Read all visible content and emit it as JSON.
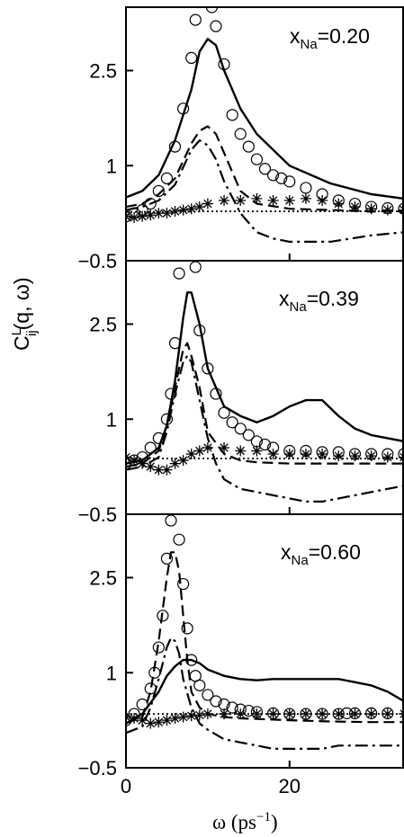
{
  "chart_data": {
    "type": "line",
    "ylabel_main": "C",
    "ylabel_sup": "L",
    "ylabel_sub": "ij",
    "ylabel_rest": "(q, ω)",
    "xlabel_main": "ω (ps",
    "xlabel_sup": "−1",
    "xlabel_close": ")",
    "xlim": [
      0,
      34
    ],
    "ylim": [
      -0.5,
      3.5
    ],
    "x_ticks": [
      0,
      20
    ],
    "x_tick_labels": [
      "0",
      "20"
    ],
    "y_ticks": [
      -0.5,
      1,
      2.5
    ],
    "y_tick_labels": [
      "−0.5",
      "1",
      "2.5"
    ],
    "panels": [
      {
        "label_main": "x",
        "label_sub": "Na",
        "label_val": "=0.20",
        "series": [
          {
            "style": "solid",
            "x": [
              0,
              2,
              4,
              6,
              8,
              9,
              10,
              11,
              12,
              14,
              16,
              20,
              25,
              30,
              34
            ],
            "y": [
              0.5,
              0.6,
              0.85,
              1.4,
              2.2,
              2.8,
              3.0,
              2.9,
              2.5,
              1.9,
              1.5,
              1.0,
              0.72,
              0.55,
              0.48
            ]
          },
          {
            "style": "dashed",
            "x": [
              0,
              2,
              4,
              6,
              8,
              9,
              10,
              11,
              12,
              14,
              16,
              20,
              25,
              30,
              34
            ],
            "y": [
              0.35,
              0.4,
              0.55,
              0.8,
              1.35,
              1.55,
              1.62,
              1.5,
              1.2,
              0.6,
              0.4,
              0.32,
              0.3,
              0.28,
              0.28
            ]
          },
          {
            "style": "dashdot",
            "x": [
              0,
              2,
              4,
              6,
              8,
              9,
              10,
              11,
              12,
              14,
              16,
              18,
              20,
              25,
              30,
              34
            ],
            "y": [
              0.3,
              0.35,
              0.45,
              0.7,
              1.25,
              1.4,
              1.32,
              1.1,
              0.75,
              0.25,
              -0.05,
              -0.15,
              -0.2,
              -0.2,
              -0.1,
              -0.05
            ]
          },
          {
            "style": "dotted",
            "x": [
              0,
              5,
              10,
              15,
              20,
              25,
              30,
              34
            ],
            "y": [
              0.27,
              0.27,
              0.28,
              0.28,
              0.28,
              0.28,
              0.28,
              0.28
            ]
          },
          {
            "style": "circle",
            "x": [
              0,
              1,
              2,
              3,
              4,
              5,
              6,
              7,
              8,
              8.5,
              9,
              9.5,
              10,
              10.5,
              11,
              12,
              13,
              14,
              15,
              16,
              17,
              18,
              19,
              20,
              22,
              24,
              26,
              28,
              30,
              32,
              34
            ],
            "y": [
              0.2,
              0.25,
              0.3,
              0.4,
              0.6,
              0.8,
              1.3,
              1.9,
              2.7,
              3.3,
              3.6,
              3.7,
              3.7,
              3.5,
              3.2,
              2.6,
              1.8,
              1.5,
              1.3,
              1.1,
              0.95,
              0.85,
              0.8,
              0.75,
              0.65,
              0.55,
              0.45,
              0.4,
              0.35,
              0.33,
              0.32
            ]
          },
          {
            "style": "star",
            "x": [
              0,
              1,
              2,
              3,
              4,
              5,
              6,
              7,
              8,
              9,
              10,
              12,
              14,
              16,
              18,
              20,
              22,
              24,
              26,
              28,
              30,
              32,
              34
            ],
            "y": [
              0.2,
              0.18,
              0.2,
              0.22,
              0.25,
              0.25,
              0.28,
              0.3,
              0.32,
              0.35,
              0.4,
              0.45,
              0.45,
              0.48,
              0.45,
              0.45,
              0.48,
              0.45,
              0.4,
              0.35,
              0.32,
              0.3,
              0.3
            ]
          }
        ]
      },
      {
        "label_main": "x",
        "label_sub": "Na",
        "label_val": "=0.39",
        "series": [
          {
            "style": "solid",
            "x": [
              0,
              2,
              4,
              5,
              6,
              7,
              7.5,
              8,
              9,
              10,
              12,
              14,
              16,
              18,
              20,
              22,
              24,
              26,
              28,
              30,
              32,
              34
            ],
            "y": [
              0.3,
              0.35,
              0.55,
              0.9,
              1.6,
              2.6,
              3.0,
              3.0,
              2.5,
              1.8,
              1.2,
              1.05,
              0.95,
              1.05,
              1.2,
              1.3,
              1.3,
              1.05,
              0.85,
              0.75,
              0.7,
              0.65
            ]
          },
          {
            "style": "dashed",
            "x": [
              0,
              2,
              4,
              5,
              6,
              7,
              7.5,
              8,
              9,
              10,
              12,
              14,
              16,
              20,
              25,
              30,
              34
            ],
            "y": [
              0.25,
              0.3,
              0.5,
              0.9,
              1.5,
              2.1,
              2.2,
              2.0,
              1.5,
              0.8,
              0.45,
              0.35,
              0.32,
              0.3,
              0.3,
              0.3,
              0.3
            ]
          },
          {
            "style": "dashdot",
            "x": [
              0,
              2,
              4,
              5,
              6,
              7,
              7.5,
              8,
              9,
              10,
              11,
              12,
              14,
              16,
              18,
              20,
              22,
              24,
              26,
              28,
              30,
              32,
              34
            ],
            "y": [
              0.2,
              0.25,
              0.4,
              0.8,
              1.4,
              1.9,
              2.0,
              1.9,
              1.3,
              0.7,
              0.3,
              0.05,
              -0.1,
              -0.15,
              -0.2,
              -0.25,
              -0.3,
              -0.3,
              -0.25,
              -0.2,
              -0.15,
              -0.1,
              -0.05
            ]
          },
          {
            "style": "dotted",
            "x": [
              0,
              5,
              10,
              15,
              20,
              25,
              30,
              34
            ],
            "y": [
              0.38,
              0.38,
              0.38,
              0.38,
              0.38,
              0.38,
              0.38,
              0.38
            ]
          },
          {
            "style": "circle",
            "x": [
              0,
              1,
              2,
              3,
              4,
              5,
              5.5,
              6,
              6.5,
              7,
              7.5,
              8,
              8.5,
              9,
              10,
              11,
              12,
              13,
              14,
              15,
              16,
              17,
              18,
              20,
              22,
              24,
              26,
              28,
              30,
              32,
              34
            ],
            "y": [
              0.3,
              0.35,
              0.4,
              0.55,
              0.7,
              1.0,
              1.4,
              2.2,
              3.3,
              3.9,
              4.2,
              4.2,
              3.4,
              2.4,
              1.8,
              1.4,
              1.1,
              0.95,
              0.85,
              0.75,
              0.65,
              0.6,
              0.55,
              0.5,
              0.5,
              0.48,
              0.48,
              0.45,
              0.45,
              0.45,
              0.45
            ]
          },
          {
            "style": "star",
            "x": [
              0,
              1,
              2,
              3,
              4,
              5,
              6,
              7,
              8,
              9,
              10,
              12,
              14,
              16,
              18,
              20,
              22,
              24,
              26,
              28,
              30,
              32,
              34
            ],
            "y": [
              0.4,
              0.35,
              0.3,
              0.25,
              0.2,
              0.2,
              0.3,
              0.35,
              0.45,
              0.5,
              0.55,
              0.55,
              0.5,
              0.5,
              0.45,
              0.45,
              0.45,
              0.45,
              0.42,
              0.42,
              0.42,
              0.4,
              0.4
            ]
          }
        ]
      },
      {
        "label_main": "x",
        "label_sub": "Na",
        "label_val": "=0.60",
        "series": [
          {
            "style": "solid",
            "x": [
              0,
              2,
              4,
              5,
              6,
              7,
              8,
              9,
              10,
              12,
              14,
              16,
              18,
              20,
              22,
              24,
              26,
              28,
              30,
              32,
              34
            ],
            "y": [
              0.2,
              0.35,
              0.7,
              0.95,
              1.1,
              1.2,
              1.2,
              1.15,
              1.05,
              0.95,
              0.9,
              0.88,
              0.9,
              0.9,
              0.9,
              0.9,
              0.9,
              0.85,
              0.8,
              0.7,
              0.55
            ]
          },
          {
            "style": "dashed",
            "x": [
              0,
              2,
              3,
              4,
              5,
              5.5,
              6,
              6.5,
              7,
              7.5,
              8,
              9,
              10,
              12,
              14,
              16,
              20,
              25,
              30,
              34
            ],
            "y": [
              0.2,
              0.3,
              0.7,
              1.5,
              2.5,
              2.9,
              2.9,
              2.6,
              1.9,
              1.2,
              0.7,
              0.45,
              0.35,
              0.3,
              0.28,
              0.27,
              0.25,
              0.23,
              0.22,
              0.22
            ]
          },
          {
            "style": "dashdot",
            "x": [
              0,
              2,
              3,
              4,
              5,
              5.5,
              6,
              6.5,
              7,
              8,
              9,
              10,
              12,
              14,
              16,
              18,
              20,
              22,
              24,
              26,
              28,
              30,
              32,
              34
            ],
            "y": [
              0.05,
              0.15,
              0.45,
              0.9,
              1.4,
              1.55,
              1.5,
              1.3,
              0.9,
              0.45,
              0.2,
              0.1,
              -0.05,
              -0.1,
              -0.15,
              -0.2,
              -0.2,
              -0.2,
              -0.2,
              -0.15,
              -0.15,
              -0.15,
              -0.15,
              -0.15
            ]
          },
          {
            "style": "dotted",
            "x": [
              0,
              5,
              10,
              15,
              20,
              25,
              30,
              34
            ],
            "y": [
              0.35,
              0.35,
              0.35,
              0.35,
              0.35,
              0.35,
              0.35,
              0.35
            ]
          },
          {
            "style": "circle",
            "x": [
              0,
              1,
              2,
              3,
              3.5,
              4,
              4.5,
              5,
              5.5,
              6,
              6.5,
              7,
              7.5,
              8,
              8.5,
              9,
              10,
              11,
              12,
              13,
              14,
              15,
              16,
              18,
              20,
              22,
              24,
              26,
              27,
              28,
              30,
              32
            ],
            "y": [
              0.25,
              0.35,
              0.5,
              0.75,
              1.0,
              1.4,
              1.9,
              2.8,
              3.4,
              3.6,
              3.1,
              2.4,
              1.7,
              1.2,
              0.95,
              0.8,
              0.65,
              0.55,
              0.5,
              0.45,
              0.42,
              0.4,
              0.38,
              0.36,
              0.35,
              0.35,
              0.35,
              0.35,
              0.36,
              0.36,
              0.36,
              0.36
            ]
          },
          {
            "style": "star",
            "x": [
              0,
              1,
              2,
              3,
              4,
              5,
              6,
              7,
              8,
              9,
              10,
              12,
              14,
              16,
              18,
              20,
              22,
              24,
              26,
              28,
              30,
              32,
              34
            ],
            "y": [
              0.3,
              0.28,
              0.25,
              0.2,
              0.22,
              0.25,
              0.28,
              0.3,
              0.32,
              0.33,
              0.35,
              0.35,
              0.35,
              0.35,
              0.35,
              0.35,
              0.35,
              0.35,
              0.35,
              0.35,
              0.35,
              0.35,
              0.35
            ]
          }
        ]
      }
    ]
  }
}
